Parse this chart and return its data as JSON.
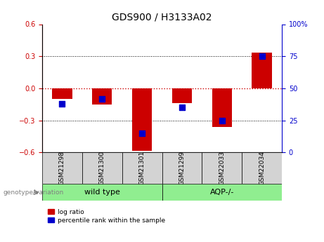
{
  "title": "GDS900 / H3133A02",
  "categories": [
    "GSM21298",
    "GSM21300",
    "GSM21301",
    "GSM21299",
    "GSM22033",
    "GSM22034"
  ],
  "log_ratios": [
    -0.1,
    -0.15,
    -0.585,
    -0.14,
    -0.36,
    0.335
  ],
  "percentile_ranks": [
    38,
    42,
    15,
    35,
    25,
    75
  ],
  "ylim_left": [
    -0.6,
    0.6
  ],
  "ylim_right": [
    0,
    100
  ],
  "bar_color": "#cc0000",
  "dot_color": "#0000cc",
  "zero_line_color": "#cc0000",
  "group_wildtype": {
    "label": "wild type",
    "start": 0,
    "end": 2
  },
  "group_aqp": {
    "label": "AQP-/-",
    "start": 3,
    "end": 5
  },
  "group_color": "#90ee90",
  "sample_box_color": "#d3d3d3",
  "group_label_prefix": "genotype/variation",
  "legend_log_ratio": "log ratio",
  "legend_percentile": "percentile rank within the sample",
  "left_yticks": [
    -0.6,
    -0.3,
    0,
    0.3,
    0.6
  ],
  "right_yticks": [
    0,
    25,
    50,
    75,
    100
  ],
  "bar_width": 0.5,
  "dot_size": 30,
  "title_color": "#000000",
  "left_axis_color": "#cc0000",
  "right_axis_color": "#0000cc",
  "figsize": [
    4.61,
    3.45
  ],
  "dpi": 100
}
